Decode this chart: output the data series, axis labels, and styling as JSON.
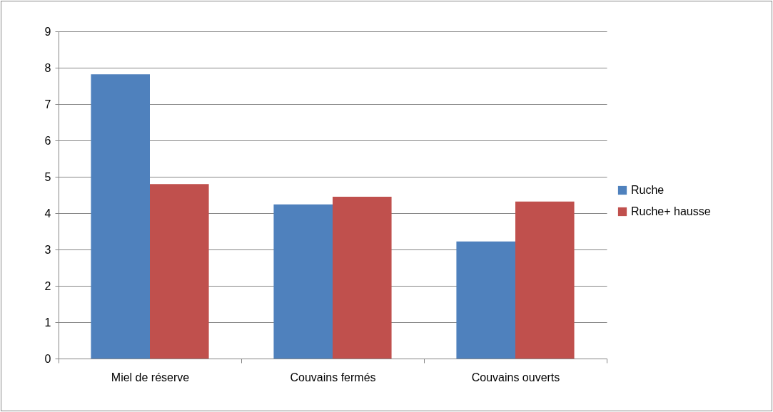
{
  "chart_data": {
    "type": "bar",
    "categories": [
      "Miel de réserve",
      "Couvains fermés",
      "Couvains ouverts"
    ],
    "series": [
      {
        "name": "Ruche",
        "color": "#4f81bd",
        "values": [
          7.82,
          4.24,
          3.22
        ]
      },
      {
        "name": "Ruche+ hausse",
        "color": "#c0504d",
        "values": [
          4.8,
          4.45,
          4.32
        ]
      }
    ],
    "ylim": [
      0,
      9
    ],
    "yticks": [
      0,
      1,
      2,
      3,
      4,
      5,
      6,
      7,
      8,
      9
    ],
    "grid": "y",
    "legend": "right"
  }
}
